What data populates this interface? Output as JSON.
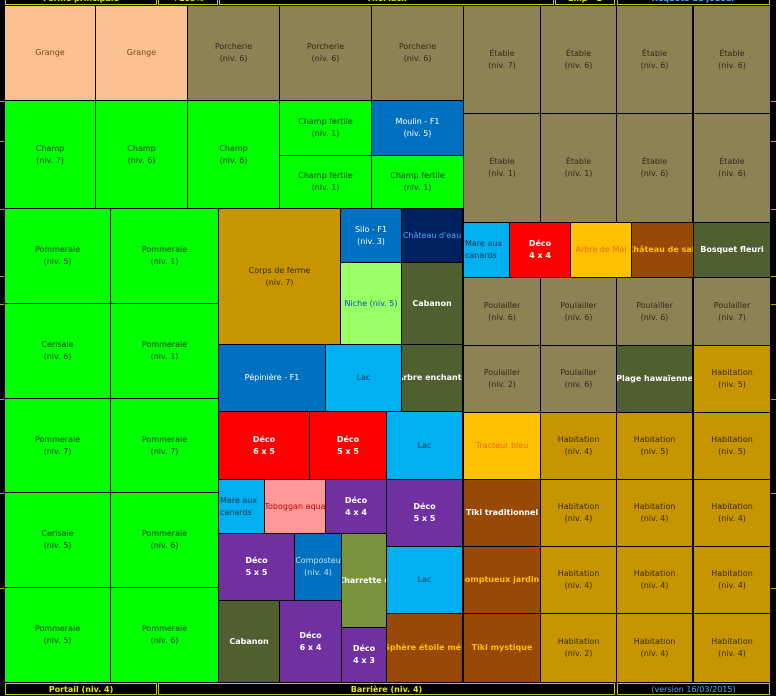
{
  "header": {
    "items": [
      "Ferme principale",
      "+103%",
      "TheMack",
      "Emp - 1",
      "Requête du joueur"
    ]
  },
  "tiles": [
    {
      "name": "Grange"
    },
    {
      "name": "Grange"
    },
    {
      "name": "Porcherie",
      "level": "(niv. 6)"
    },
    {
      "name": "Porcherie",
      "level": "(niv. 6)"
    },
    {
      "name": "Porcherie",
      "level": "(niv. 6)"
    },
    {
      "name": "Étable",
      "level": "(niv. 7)"
    },
    {
      "name": "Étable",
      "level": "(niv. 6)"
    },
    {
      "name": "Étable",
      "level": "(niv. 6)"
    },
    {
      "name": "Étable",
      "level": "(niv. 6)"
    },
    {
      "name": "Champ",
      "level": "(niv. 7)"
    },
    {
      "name": "Champ",
      "level": "(niv. 6)"
    },
    {
      "name": "Champ",
      "level": "(niv. 6)"
    },
    {
      "name": "Champ fertile",
      "level": "(niv. 1)"
    },
    {
      "name": "Moulin - F1",
      "level": "(niv. 5)"
    },
    {
      "name": "Champ fertile",
      "level": "(niv. 1)"
    },
    {
      "name": "Champ fertile",
      "level": "(niv. 1)"
    },
    {
      "name": "Étable",
      "level": "(niv. 1)"
    },
    {
      "name": "Étable",
      "level": "(niv. 1)"
    },
    {
      "name": "Étable",
      "level": "(niv. 6)"
    },
    {
      "name": "Étable",
      "level": "(niv. 6)"
    },
    {
      "name": "Pommeraie",
      "level": "(niv. 5)"
    },
    {
      "name": "Pommeraie",
      "level": "(niv. 1)"
    },
    {
      "name": "Cerisaie",
      "level": "(niv. 6)"
    },
    {
      "name": "Pommeraie",
      "level": "(niv. 1)"
    },
    {
      "name": "Pommeraie",
      "level": "(niv. 7)"
    },
    {
      "name": "Pommeraie",
      "level": "(niv. 7)"
    },
    {
      "name": "Cerisaie",
      "level": "(niv. 5)"
    },
    {
      "name": "Pommeraie",
      "level": "(niv. 6)"
    },
    {
      "name": "Pommeraie",
      "level": "(niv. 5)"
    },
    {
      "name": "Pommeraie",
      "level": "(niv. 6)"
    },
    {
      "name": "Corps de ferme",
      "level": "(niv. 7)"
    },
    {
      "name": "Silo - F1",
      "level": "(niv. 3)"
    },
    {
      "name": "Château d'eau"
    },
    {
      "name": "Niche (niv. 5)"
    },
    {
      "name": "Cabanon"
    },
    {
      "name": "Pépinière - F1"
    },
    {
      "name": "Lac"
    },
    {
      "name": "Arbre enchanté"
    },
    {
      "name": "Déco",
      "level": "6 x 5"
    },
    {
      "name": "Déco",
      "level": "5 x 5"
    },
    {
      "name": "Lac"
    },
    {
      "name": "Mare aux canards"
    },
    {
      "name": "Toboggan aqua"
    },
    {
      "name": "Déco",
      "level": "4 x 4"
    },
    {
      "name": "Déco",
      "level": "5 x 5"
    },
    {
      "name": "Déco",
      "level": "5 x 5"
    },
    {
      "name": "Composteu",
      "level": "(niv. 4)"
    },
    {
      "name": "Charrette e"
    },
    {
      "name": "Lac"
    },
    {
      "name": "Cabanon"
    },
    {
      "name": "Déco",
      "level": "6 x 4"
    },
    {
      "name": "Déco",
      "level": "4 x 3"
    },
    {
      "name": "Sphère étoile mét"
    },
    {
      "name": "Mare aux canards"
    },
    {
      "name": "Déco",
      "level": "4 x 4"
    },
    {
      "name": "Arbre de Mai"
    },
    {
      "name": "Château de sab"
    },
    {
      "name": "Bosquet fleuri"
    },
    {
      "name": "Poulailler",
      "level": "(niv. 6)"
    },
    {
      "name": "Poulailler",
      "level": "(niv. 6)"
    },
    {
      "name": "Poulailler",
      "level": "(niv. 6)"
    },
    {
      "name": "Poulailler",
      "level": "(niv. 7)"
    },
    {
      "name": "Poulailler",
      "level": "(niv. 2)"
    },
    {
      "name": "Poulailler",
      "level": "(niv. 6)"
    },
    {
      "name": "Plage hawaïenne"
    },
    {
      "name": "Habitation",
      "level": "(niv. 5)"
    },
    {
      "name": "Tracteur bleu"
    },
    {
      "name": "Habitation",
      "level": "(niv. 4)"
    },
    {
      "name": "Habitation",
      "level": "(niv. 5)"
    },
    {
      "name": "Habitation",
      "level": "(niv. 5)"
    },
    {
      "name": "Tiki traditionnel"
    },
    {
      "name": "Habitation",
      "level": "(niv. 4)"
    },
    {
      "name": "Habitation",
      "level": "(niv. 4)"
    },
    {
      "name": "Habitation",
      "level": "(niv. 4)"
    },
    {
      "name": "Somptueux jardin j"
    },
    {
      "name": "Habitation",
      "level": "(niv. 4)"
    },
    {
      "name": "Habitation",
      "level": "(niv. 4)"
    },
    {
      "name": "Habitation",
      "level": "(niv. 4)"
    },
    {
      "name": "Tiki mystique"
    },
    {
      "name": "Habitation",
      "level": "(niv. 2)"
    },
    {
      "name": "Habitation",
      "level": "(niv. 4)"
    },
    {
      "name": "Habitation",
      "level": "(niv. 4)"
    }
  ],
  "footer": {
    "items": [
      "Portail (niv. 4)",
      "Barrière (niv. 4)",
      "(version 16/03/2015)"
    ]
  }
}
